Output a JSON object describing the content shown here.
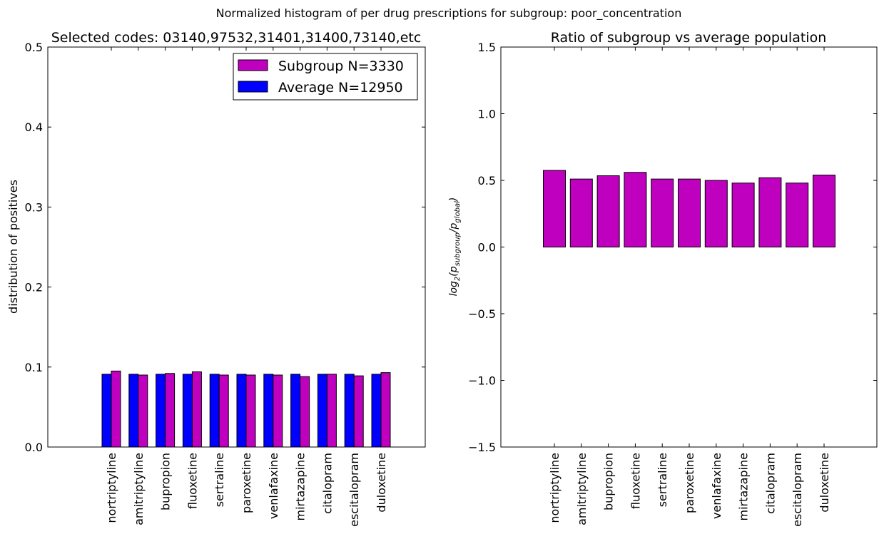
{
  "suptitle": "Normalized histogram of per drug prescriptions for subgroup: poor_concentration",
  "colors": {
    "subgroup": "#bf00bf",
    "average": "#0000ff",
    "edge": "#000000"
  },
  "chart_data": [
    {
      "type": "bar",
      "title": "Selected codes: 03140,97532,31401,31400,73140,etc",
      "xlabel": "",
      "ylabel": "distribution of positives",
      "ylim": [
        0,
        0.5
      ],
      "yticks": [
        "0.0",
        "0.1",
        "0.2",
        "0.3",
        "0.4",
        "0.5"
      ],
      "categories": [
        "nortriptyline",
        "amitriptyline",
        "bupropion",
        "fluoxetine",
        "sertraline",
        "paroxetine",
        "venlafaxine",
        "mirtazapine",
        "citalopram",
        "escitalopram",
        "duloxetine"
      ],
      "series": [
        {
          "name": "Average N=12950",
          "values": [
            0.091,
            0.091,
            0.091,
            0.091,
            0.091,
            0.091,
            0.091,
            0.091,
            0.091,
            0.091,
            0.091
          ]
        },
        {
          "name": "Subgroup N=3330",
          "values": [
            0.095,
            0.09,
            0.092,
            0.094,
            0.09,
            0.09,
            0.09,
            0.088,
            0.091,
            0.089,
            0.093
          ]
        }
      ],
      "legend": {
        "placement": "top-right",
        "entries": [
          "Subgroup N=3330",
          "Average N=12950"
        ]
      },
      "grid": false
    },
    {
      "type": "bar",
      "title": "Ratio of subgroup vs average population",
      "xlabel": "",
      "ylabel": "log2(p_subgroup / p_global)",
      "ylim": [
        -1.5,
        1.5
      ],
      "yticks": [
        "−1.5",
        "−1.0",
        "−0.5",
        "0.0",
        "0.5",
        "1.0",
        "1.5"
      ],
      "categories": [
        "nortriptyline",
        "amitriptyline",
        "bupropion",
        "fluoxetine",
        "sertraline",
        "paroxetine",
        "venlafaxine",
        "mirtazapine",
        "citalopram",
        "escitalopram",
        "duloxetine"
      ],
      "values": [
        0.575,
        0.51,
        0.535,
        0.56,
        0.51,
        0.51,
        0.5,
        0.48,
        0.52,
        0.48,
        0.54
      ],
      "grid": false
    }
  ]
}
